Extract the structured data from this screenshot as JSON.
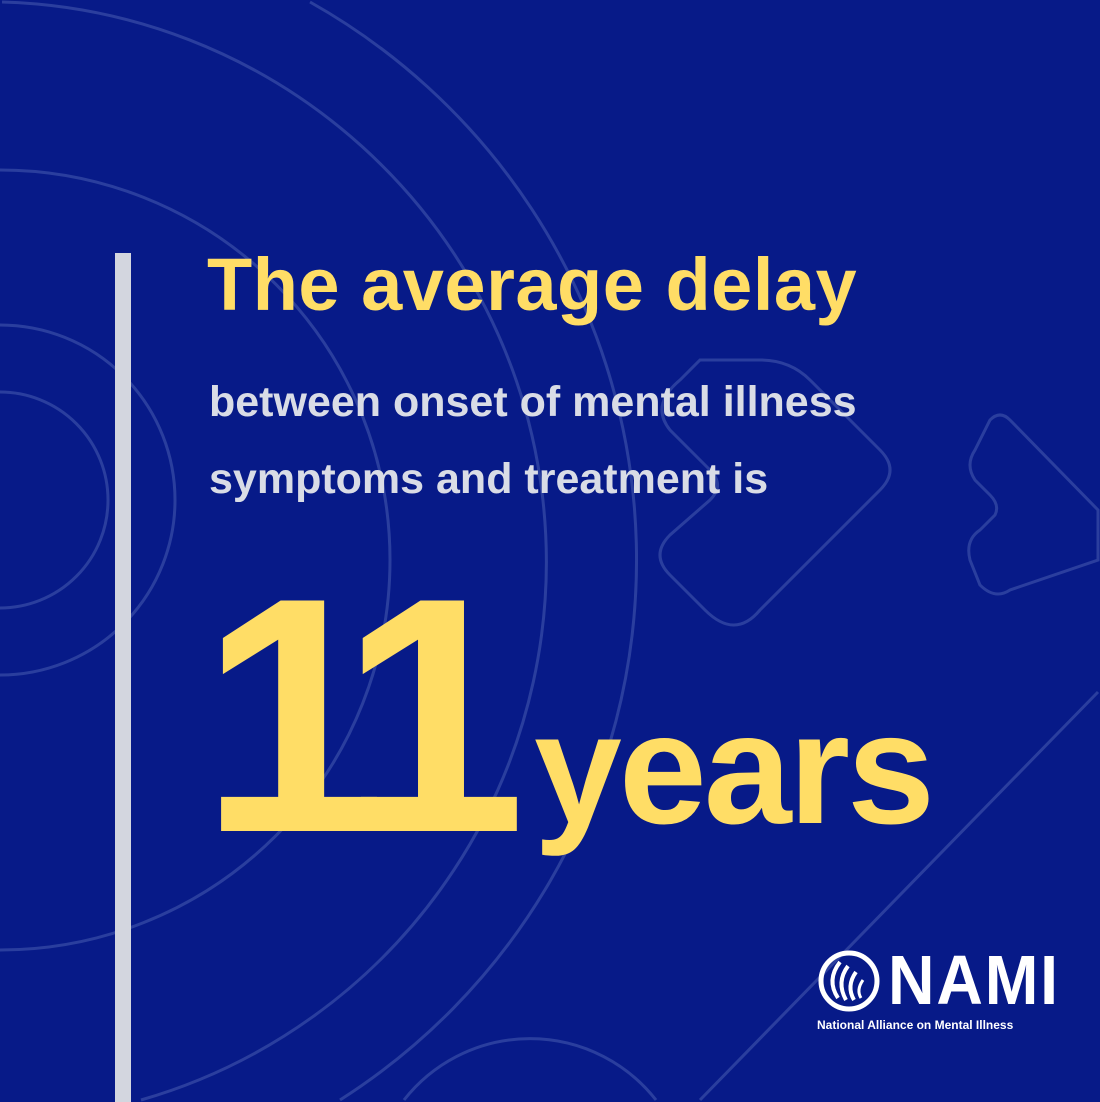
{
  "headline": "The average delay",
  "subtext": {
    "line1": "between onset of mental illness",
    "line2": "symptoms and treatment is"
  },
  "stat": {
    "number": "11",
    "unit": "years"
  },
  "logo": {
    "wordmark": "NAMI",
    "tagline": "National Alliance on Mental Illness"
  },
  "colors": {
    "background": "#071a88",
    "accent": "#ffdd66",
    "subtext": "#d9dce6"
  }
}
